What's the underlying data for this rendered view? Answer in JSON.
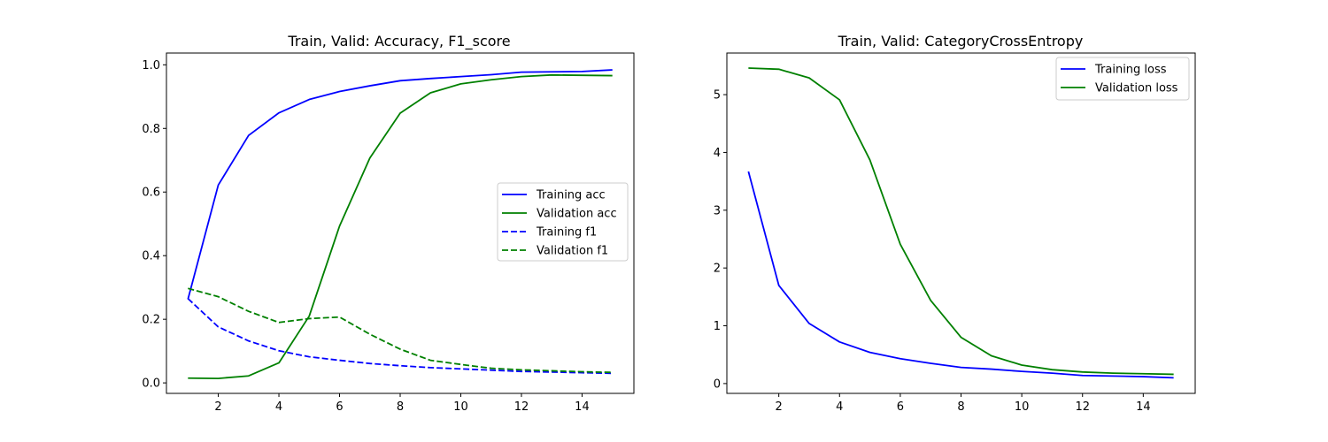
{
  "chart_data": [
    {
      "type": "line",
      "title": "Train, Valid: Accuracy, F1_score",
      "xlabel": "",
      "ylabel": "",
      "xlim": [
        0.29,
        15.71
      ],
      "ylim": [
        -0.033,
        1.037
      ],
      "xticks": [
        2,
        4,
        6,
        8,
        10,
        12,
        14
      ],
      "yticks": [
        0.0,
        0.2,
        0.4,
        0.6,
        0.8,
        1.0
      ],
      "ytick_labels": [
        "0.0",
        "0.2",
        "0.4",
        "0.6",
        "0.8",
        "1.0"
      ],
      "grid": false,
      "legend": "center-right",
      "x": [
        1,
        2,
        3,
        4,
        5,
        6,
        7,
        8,
        9,
        10,
        11,
        12,
        13,
        14,
        15
      ],
      "series": [
        {
          "name": "Training acc",
          "color": "#0000ff",
          "style": "solid",
          "values": [
            0.263,
            0.622,
            0.778,
            0.849,
            0.891,
            0.916,
            0.934,
            0.95,
            0.957,
            0.963,
            0.969,
            0.977,
            0.978,
            0.979,
            0.984
          ]
        },
        {
          "name": "Validation acc",
          "color": "#008000",
          "style": "solid",
          "values": [
            0.015,
            0.014,
            0.022,
            0.063,
            0.21,
            0.493,
            0.707,
            0.848,
            0.912,
            0.94,
            0.953,
            0.963,
            0.968,
            0.967,
            0.966
          ]
        },
        {
          "name": "Training f1",
          "color": "#0000ff",
          "style": "dashed",
          "values": [
            0.265,
            0.176,
            0.132,
            0.101,
            0.082,
            0.071,
            0.061,
            0.054,
            0.048,
            0.044,
            0.04,
            0.036,
            0.034,
            0.032,
            0.03
          ]
        },
        {
          "name": "Validation f1",
          "color": "#008000",
          "style": "dashed",
          "values": [
            0.297,
            0.271,
            0.225,
            0.19,
            0.202,
            0.207,
            0.153,
            0.106,
            0.071,
            0.058,
            0.046,
            0.041,
            0.038,
            0.035,
            0.033
          ]
        }
      ]
    },
    {
      "type": "line",
      "title": "Train, Valid: CategoryCrossEntropy",
      "xlabel": "",
      "ylabel": "",
      "xlim": [
        0.29,
        15.71
      ],
      "ylim": [
        -0.17,
        5.72
      ],
      "xticks": [
        2,
        4,
        6,
        8,
        10,
        12,
        14
      ],
      "yticks": [
        0,
        1,
        2,
        3,
        4,
        5
      ],
      "ytick_labels": [
        "0",
        "1",
        "2",
        "3",
        "4",
        "5"
      ],
      "grid": false,
      "legend": "upper-right",
      "x": [
        1,
        2,
        3,
        4,
        5,
        6,
        7,
        8,
        9,
        10,
        11,
        12,
        13,
        14,
        15
      ],
      "series": [
        {
          "name": "Training loss",
          "color": "#0000ff",
          "style": "solid",
          "values": [
            3.67,
            1.7,
            1.04,
            0.72,
            0.54,
            0.43,
            0.35,
            0.28,
            0.25,
            0.21,
            0.18,
            0.14,
            0.13,
            0.12,
            0.1
          ]
        },
        {
          "name": "Validation loss",
          "color": "#008000",
          "style": "solid",
          "values": [
            5.46,
            5.44,
            5.29,
            4.91,
            3.87,
            2.41,
            1.44,
            0.8,
            0.48,
            0.32,
            0.24,
            0.2,
            0.18,
            0.17,
            0.16
          ]
        }
      ]
    }
  ]
}
